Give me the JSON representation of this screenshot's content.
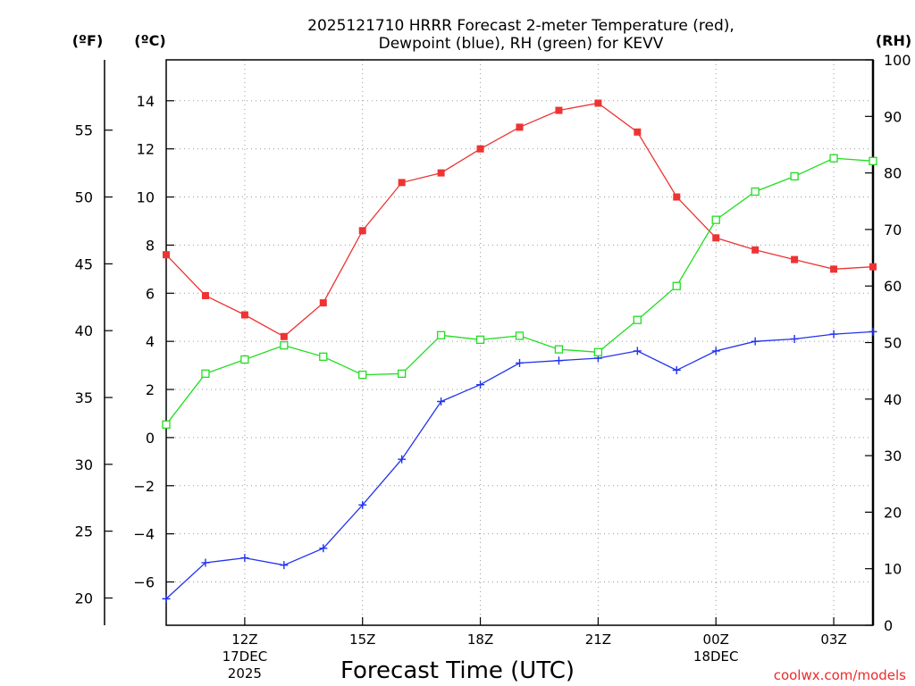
{
  "chart_data": {
    "type": "line",
    "title": "2025121710 HRRR Forecast 2-meter Temperature (red),",
    "subtitle": "Dewpoint (blue), RH (green) for KEVV",
    "xlabel": "Forecast Time (UTC)",
    "credit": "coolwx.com/models",
    "units": {
      "fahrenheit": "(ºF)",
      "celsius": "(ºC)",
      "rh": "(RH)"
    },
    "x_hours": [
      0,
      1,
      2,
      3,
      4,
      5,
      6,
      7,
      8,
      9,
      10,
      11,
      12,
      13,
      14,
      15,
      16,
      17,
      18
    ],
    "x_ticks": [
      {
        "hour": 2,
        "lines": [
          "12Z",
          "17DEC",
          "2025"
        ]
      },
      {
        "hour": 5,
        "lines": [
          "15Z"
        ]
      },
      {
        "hour": 8,
        "lines": [
          "18Z"
        ]
      },
      {
        "hour": 11,
        "lines": [
          "21Z"
        ]
      },
      {
        "hour": 14,
        "lines": [
          "00Z",
          "18DEC"
        ]
      },
      {
        "hour": 17,
        "lines": [
          "03Z"
        ]
      }
    ],
    "xlim": [
      0,
      18
    ],
    "ylim_celsius": [
      -7.8,
      15.7
    ],
    "ylim_rh": [
      0,
      100
    ],
    "y_ticks_celsius": [
      -6,
      -4,
      -2,
      0,
      2,
      4,
      6,
      8,
      10,
      12,
      14
    ],
    "y_ticks_fahrenheit": [
      20,
      25,
      30,
      35,
      40,
      45,
      50,
      55
    ],
    "y_ticks_rh": [
      0,
      10,
      20,
      30,
      40,
      50,
      60,
      70,
      80,
      90,
      100
    ],
    "series": [
      {
        "name": "2-meter Temperature",
        "axis": "celsius",
        "color": "#ee3333",
        "marker": "filled-square",
        "values": [
          7.6,
          5.9,
          5.1,
          4.2,
          5.6,
          8.6,
          10.6,
          11.0,
          12.0,
          12.9,
          13.6,
          13.9,
          12.7,
          10.0,
          8.3,
          7.8,
          7.4,
          7.0,
          7.1
        ]
      },
      {
        "name": "Dewpoint",
        "axis": "celsius",
        "color": "#2233ee",
        "marker": "plus",
        "values": [
          -6.7,
          -5.2,
          -5.0,
          -5.3,
          -4.6,
          -2.8,
          -0.9,
          1.5,
          2.2,
          3.1,
          3.2,
          3.3,
          3.6,
          2.8,
          3.6,
          4.0,
          4.1,
          4.3,
          4.4
        ]
      },
      {
        "name": "Relative Humidity",
        "axis": "rh",
        "color": "#22dd22",
        "marker": "open-square",
        "values": [
          35.5,
          44.5,
          47,
          49.5,
          47.5,
          44.3,
          44.5,
          51.3,
          50.5,
          51.2,
          48.8,
          48.3,
          54,
          60,
          71.7,
          76.7,
          79.4,
          82.6,
          82.1
        ]
      }
    ]
  }
}
